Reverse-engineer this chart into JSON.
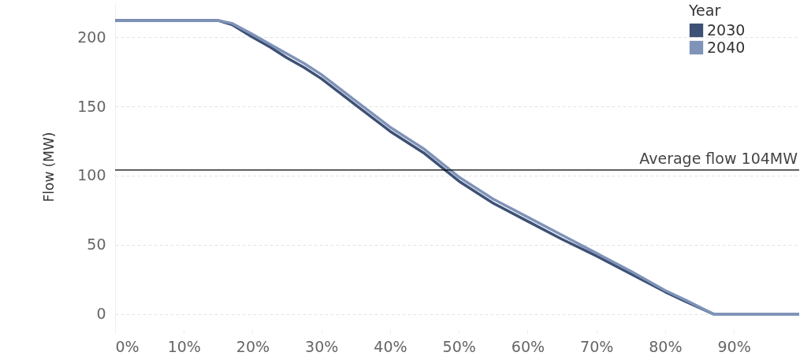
{
  "chart_data": {
    "type": "line",
    "ylabel": "Flow (MW)",
    "legend_title": "Year",
    "legend": "top right",
    "grid": "y",
    "line_style": "solid",
    "xlim": [
      0,
      99.5
    ],
    "ylim": [
      -11,
      224
    ],
    "xticks": [
      {
        "value": 0,
        "label": "0%"
      },
      {
        "value": 10,
        "label": "10%"
      },
      {
        "value": 20,
        "label": "20%"
      },
      {
        "value": 30,
        "label": "30%"
      },
      {
        "value": 40,
        "label": "40%"
      },
      {
        "value": 50,
        "label": "50%"
      },
      {
        "value": 60,
        "label": "60%"
      },
      {
        "value": 70,
        "label": "70%"
      },
      {
        "value": 80,
        "label": "80%"
      },
      {
        "value": 90,
        "label": "90%"
      }
    ],
    "yticks": [
      0,
      50,
      100,
      150,
      200
    ],
    "x": [
      0,
      15,
      17,
      20,
      22.5,
      25,
      27.5,
      30,
      35,
      40,
      45,
      50,
      55,
      60,
      65,
      70,
      75,
      80,
      83,
      87,
      99.5
    ],
    "series": [
      {
        "name": "2030",
        "color": "#3d5075",
        "values": [
          212,
          212,
          209,
          200,
          193,
          185,
          178,
          170,
          151,
          132,
          116,
          96,
          80,
          67,
          54,
          42,
          29,
          16,
          9,
          0,
          0
        ]
      },
      {
        "name": "2040",
        "color": "#7f93b8",
        "values": [
          212,
          212,
          210,
          202,
          195,
          188,
          181,
          173,
          154,
          135,
          119,
          99,
          83,
          70,
          57,
          44,
          31,
          17,
          10,
          0,
          0
        ]
      }
    ],
    "ref_lines": [
      {
        "axis": "y",
        "value": 104,
        "label": "Average flow 104MW",
        "color": "#000000"
      }
    ]
  }
}
